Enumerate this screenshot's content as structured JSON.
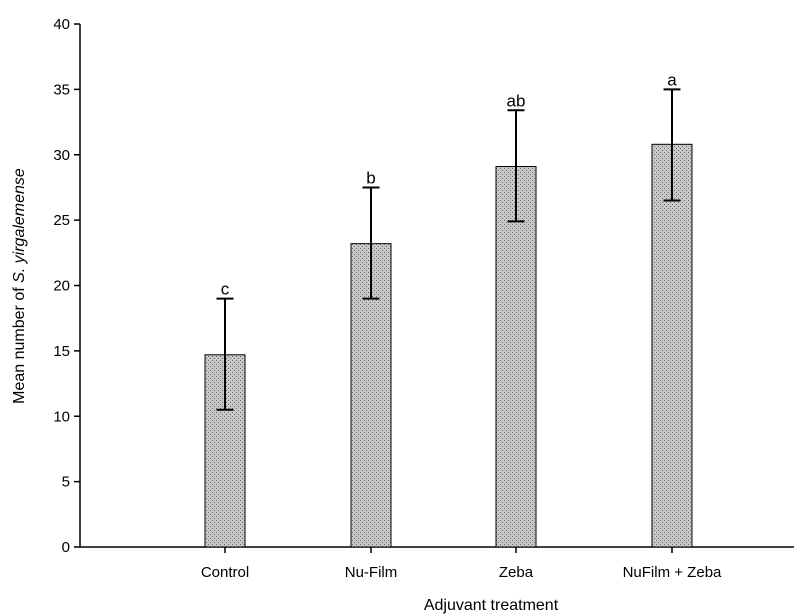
{
  "chart_data": {
    "type": "bar",
    "categories": [
      "Control",
      "Nu-Film",
      "Zeba",
      "NuFilm + Zeba"
    ],
    "values": [
      14.7,
      23.2,
      29.1,
      30.8
    ],
    "error_low": [
      10.5,
      19.0,
      24.9,
      26.5
    ],
    "error_high": [
      19.0,
      27.5,
      33.4,
      35.0
    ],
    "significance_letters": [
      "c",
      "b",
      "ab",
      "a"
    ],
    "xlabel": "Adjuvant treatment",
    "ylabel_prefix": "Mean number of ",
    "ylabel_species": "S. yirgalemense",
    "ylim": [
      0,
      40
    ],
    "yticks": [
      0,
      5,
      10,
      15,
      20,
      25,
      30,
      35,
      40
    ],
    "grid": false,
    "bar_fill": "#b8b8b8",
    "bar_stroke": "#000000"
  }
}
